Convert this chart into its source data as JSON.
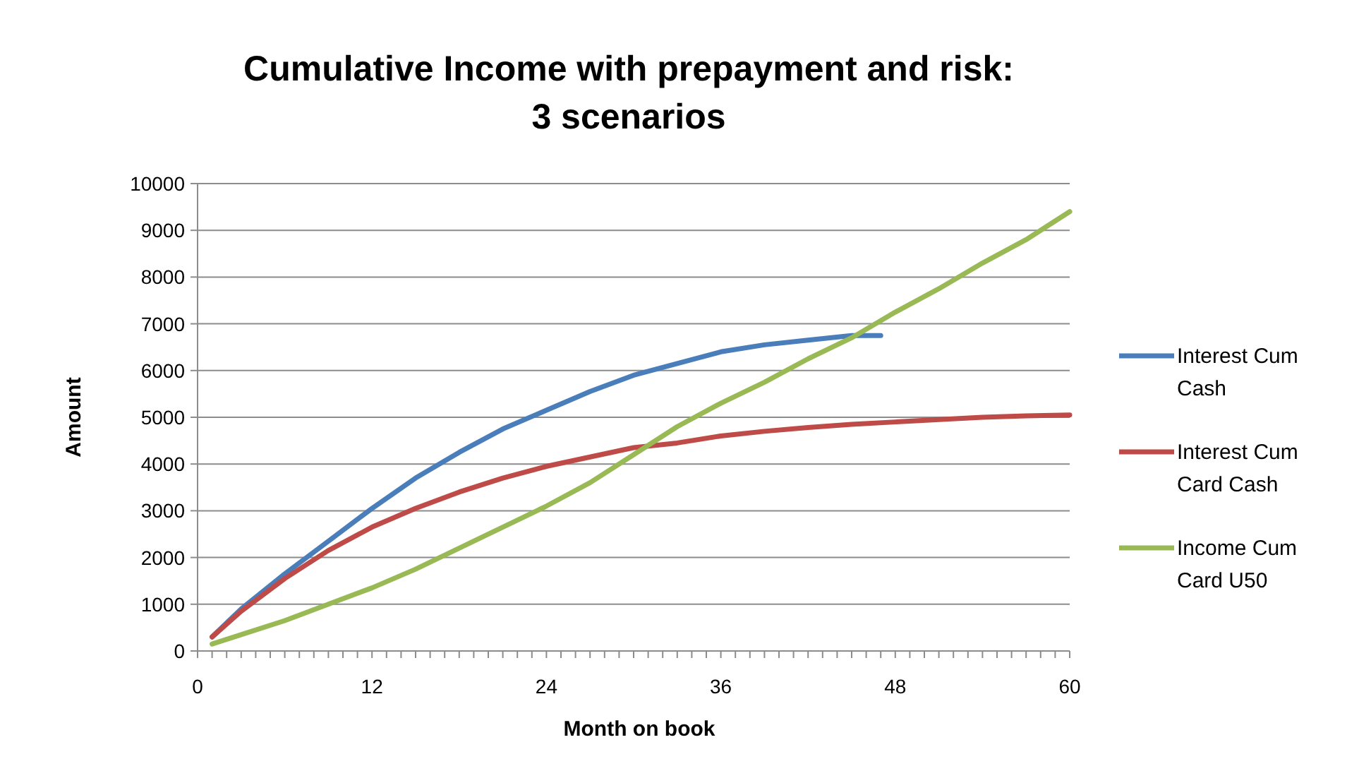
{
  "chart_data": {
    "type": "line",
    "title": "Cumulative Income with prepayment and risk:\n3 scenarios",
    "xlabel": "Month on book",
    "ylabel": "Amount",
    "xlim": [
      0,
      60
    ],
    "xticks": [
      0,
      12,
      24,
      36,
      48,
      60
    ],
    "ylim": [
      0,
      10000
    ],
    "yticks": [
      0,
      1000,
      2000,
      3000,
      4000,
      5000,
      6000,
      7000,
      8000,
      9000,
      10000
    ],
    "grid": "y",
    "legend": "right",
    "marker": "none",
    "line_style": "solid",
    "series": [
      {
        "name": "Interest Cum Cash",
        "color": "#4a7ebb",
        "x": [
          1,
          3,
          6,
          9,
          12,
          15,
          18,
          21,
          24,
          27,
          30,
          33,
          36,
          39,
          42,
          45,
          47
        ],
        "values": [
          300,
          900,
          1650,
          2350,
          3050,
          3700,
          4250,
          4750,
          5150,
          5550,
          5900,
          6150,
          6400,
          6550,
          6650,
          6750,
          6750
        ]
      },
      {
        "name": "Interest Cum Card Cash",
        "color": "#be4b48",
        "x": [
          1,
          3,
          6,
          9,
          12,
          15,
          18,
          21,
          24,
          27,
          30,
          33,
          36,
          39,
          42,
          45,
          48,
          51,
          54,
          57,
          60
        ],
        "values": [
          300,
          850,
          1550,
          2150,
          2650,
          3050,
          3400,
          3700,
          3950,
          4150,
          4350,
          4450,
          4600,
          4700,
          4780,
          4850,
          4900,
          4950,
          5000,
          5030,
          5050
        ]
      },
      {
        "name": "Income Cum Card U50",
        "color": "#98b954",
        "x": [
          1,
          3,
          6,
          9,
          12,
          15,
          18,
          21,
          24,
          27,
          30,
          33,
          36,
          39,
          42,
          45,
          48,
          51,
          54,
          57,
          60
        ],
        "values": [
          150,
          350,
          650,
          1000,
          1350,
          1750,
          2200,
          2650,
          3100,
          3600,
          4200,
          4800,
          5300,
          5750,
          6250,
          6700,
          7250,
          7750,
          8300,
          8800,
          9400
        ]
      }
    ]
  }
}
